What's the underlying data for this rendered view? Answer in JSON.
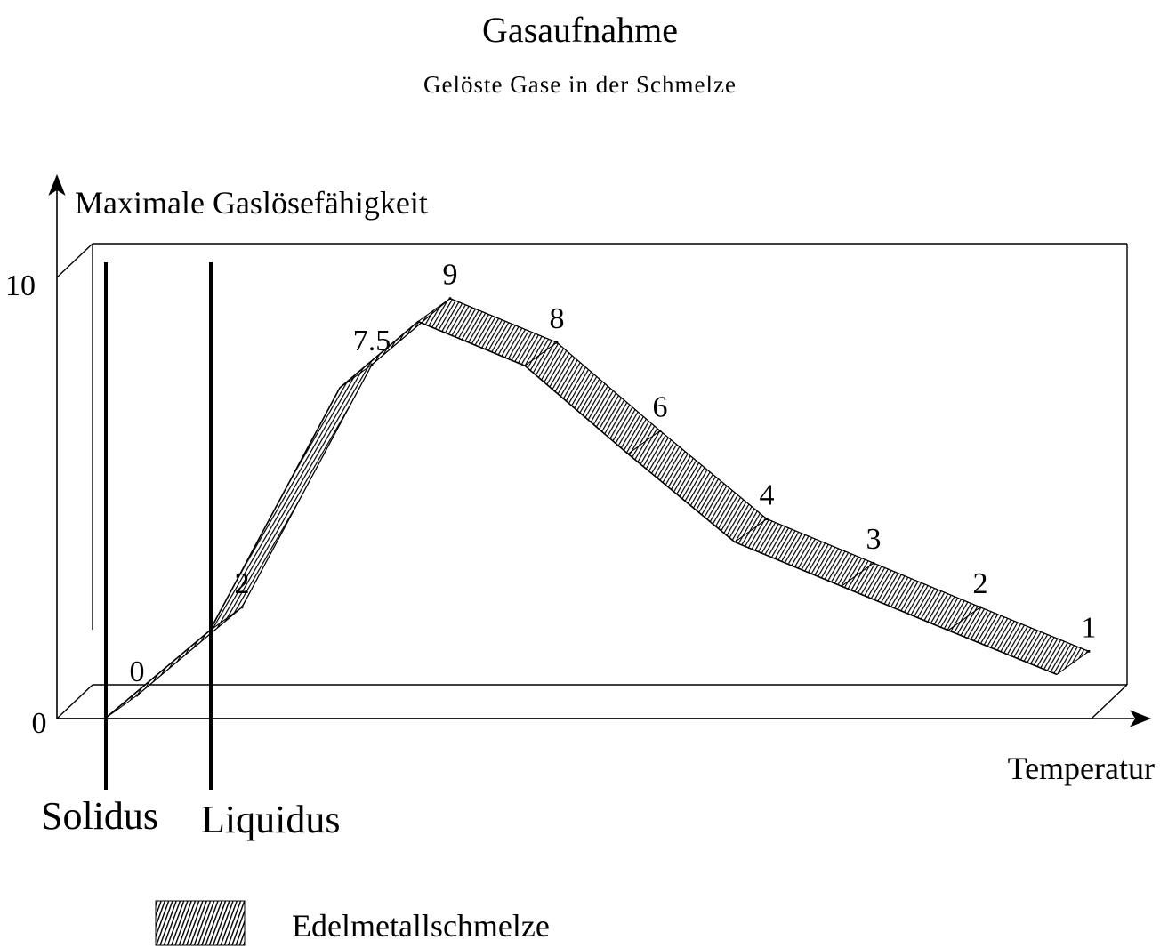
{
  "title": "Gasaufnahme",
  "subtitle": "Gelöste Gase in der Schmelze",
  "chart_data": {
    "type": "area",
    "ylabel": "Maximale Gaslösefähigkeit",
    "xlabel": "Temperatur",
    "ylim": [
      0,
      10
    ],
    "y_ticks": [
      "0",
      "10"
    ],
    "x_ticks": [],
    "grid": false,
    "legend_position": "bottom",
    "series": [
      {
        "name": "Edelmetallschmelze",
        "values": [
          0,
          2,
          7.5,
          9,
          8,
          6,
          4,
          3,
          2,
          1
        ]
      }
    ],
    "data_labels": [
      "0",
      "2",
      "7.5",
      "9",
      "8",
      "6",
      "4",
      "3",
      "2",
      "1"
    ],
    "reference_lines": [
      {
        "label": "Solidus"
      },
      {
        "label": "Liquidus"
      }
    ],
    "fill_color": "#6a6a6a",
    "line_color": "#000000"
  }
}
